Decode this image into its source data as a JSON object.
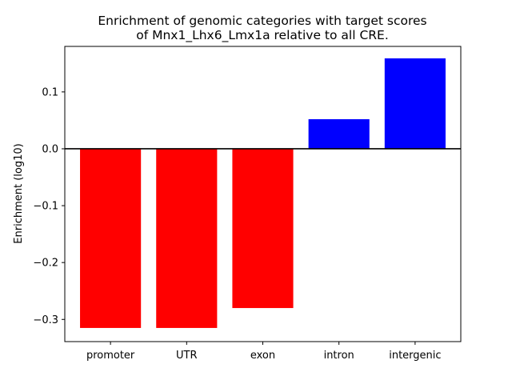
{
  "chart_data": {
    "type": "bar",
    "title_lines": [
      "Enrichment of genomic categories with target scores",
      "of Mnx1_Lhx6_Lmx1a relative to all CRE."
    ],
    "xlabel": "",
    "ylabel": "Enrichment (log10)",
    "categories": [
      "promoter",
      "UTR",
      "exon",
      "intron",
      "intergenic"
    ],
    "values": [
      -0.315,
      -0.315,
      -0.28,
      0.052,
      0.159
    ],
    "bar_colors": [
      "#ff0000",
      "#ff0000",
      "#ff0000",
      "#0000ff",
      "#0000ff"
    ],
    "ylim": [
      -0.339,
      0.18
    ],
    "yticks": [
      -0.3,
      -0.2,
      -0.1,
      0.0,
      0.1
    ],
    "ytick_labels": [
      "−0.3",
      "−0.2",
      "−0.1",
      "0.0",
      "0.1"
    ],
    "zero_line": true,
    "grid": false,
    "legend": "none"
  }
}
